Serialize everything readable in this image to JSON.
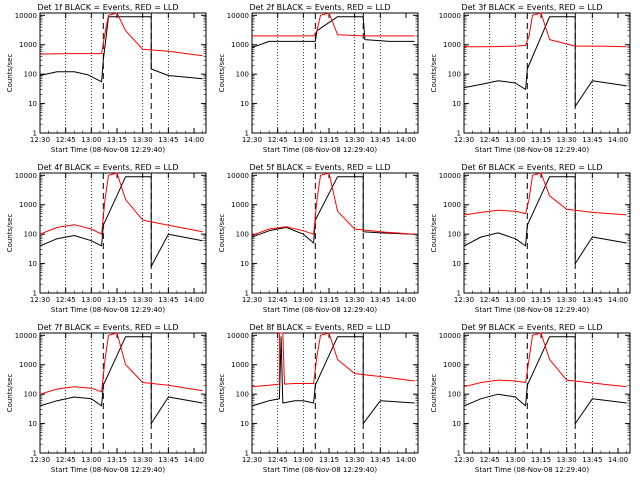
{
  "figure": {
    "xlabel": "Start Time (08-Nov-08 12:29:40)",
    "ylabel": "Counts/sec",
    "x_tick_labels": [
      "12:30",
      "12:45",
      "13:00",
      "13:15",
      "13:30",
      "13:45",
      "14:00"
    ],
    "y_tick_labels": [
      "1",
      "10",
      "100",
      "1000",
      "10000"
    ],
    "colors": {
      "events": "#000000",
      "lld": "#ff0000"
    }
  },
  "chart_data": [
    {
      "type": "line",
      "title": "Det 1f BLACK = Events, RED = LLD",
      "xlabel": "Start Time (08-Nov-08 12:29:40)",
      "ylabel": "Counts/sec",
      "xlim": [
        "12:30",
        "14:07"
      ],
      "ylim": [
        1,
        12000
      ],
      "y_scale": "log",
      "dotted_lines": [
        "12:45",
        "13:00",
        "13:30",
        "13:45"
      ],
      "dashed_lines": [
        "13:07",
        "13:35"
      ],
      "series": [
        {
          "name": "BLACK = Events",
          "color": "#000000",
          "x": [
            "12:30",
            "12:40",
            "12:50",
            "12:58",
            "13:06",
            "13:07",
            "13:10",
            "13:20",
            "13:35",
            "13:35",
            "13:45",
            "14:05"
          ],
          "y": [
            90,
            120,
            120,
            95,
            55,
            300,
            9000,
            9000,
            9000,
            150,
            90,
            70
          ]
        },
        {
          "name": "RED = LLD",
          "color": "#ff0000",
          "x": [
            "12:30",
            "12:45",
            "13:00",
            "13:06",
            "13:08",
            "13:10",
            "13:15",
            "13:20",
            "13:30",
            "13:45",
            "14:05"
          ],
          "y": [
            480,
            500,
            500,
            500,
            2500,
            10000,
            12000,
            3000,
            700,
            600,
            420
          ]
        }
      ]
    },
    {
      "type": "line",
      "title": "Det 2f BLACK = Events, RED = LLD",
      "xlabel": "Start Time (08-Nov-08 12:29:40)",
      "ylabel": "Counts/sec",
      "xlim": [
        "12:30",
        "14:07"
      ],
      "ylim": [
        1,
        12000
      ],
      "y_scale": "log",
      "dotted_lines": [
        "12:45",
        "13:00",
        "13:30",
        "13:45"
      ],
      "dashed_lines": [
        "13:07",
        "13:35"
      ],
      "series": [
        {
          "name": "BLACK = Events",
          "color": "#000000",
          "x": [
            "12:30",
            "12:40",
            "12:50",
            "13:00",
            "13:07",
            "13:08",
            "13:20",
            "13:35",
            "13:36",
            "13:50",
            "14:05"
          ],
          "y": [
            800,
            1300,
            1300,
            1300,
            1300,
            3000,
            9000,
            9000,
            1500,
            1300,
            1300
          ]
        },
        {
          "name": "RED = LLD",
          "color": "#ff0000",
          "x": [
            "12:30",
            "12:45",
            "13:00",
            "13:06",
            "13:08",
            "13:10",
            "13:15",
            "13:20",
            "13:35",
            "13:50",
            "14:05"
          ],
          "y": [
            2000,
            2000,
            2000,
            2000,
            3000,
            10000,
            12000,
            2200,
            2000,
            2000,
            2000
          ]
        }
      ]
    },
    {
      "type": "line",
      "title": "Det 3f BLACK = Events, RED = LLD",
      "xlabel": "Start Time (08-Nov-08 12:29:40)",
      "ylabel": "Counts/sec",
      "xlim": [
        "12:30",
        "14:07"
      ],
      "ylim": [
        1,
        12000
      ],
      "y_scale": "log",
      "dotted_lines": [
        "12:45",
        "13:00",
        "13:30",
        "13:45"
      ],
      "dashed_lines": [
        "13:07",
        "13:35"
      ],
      "series": [
        {
          "name": "BLACK = Events",
          "color": "#000000",
          "x": [
            "12:30",
            "12:40",
            "12:50",
            "13:00",
            "13:06",
            "13:07",
            "13:20",
            "13:35",
            "13:35",
            "13:45",
            "14:05"
          ],
          "y": [
            35,
            45,
            60,
            50,
            30,
            150,
            9000,
            9000,
            8,
            60,
            40
          ]
        },
        {
          "name": "RED = LLD",
          "color": "#ff0000",
          "x": [
            "12:30",
            "12:45",
            "13:00",
            "13:06",
            "13:08",
            "13:10",
            "13:15",
            "13:20",
            "13:35",
            "13:50",
            "14:05"
          ],
          "y": [
            850,
            850,
            900,
            950,
            2000,
            10000,
            12000,
            1500,
            900,
            900,
            850
          ]
        }
      ]
    },
    {
      "type": "line",
      "title": "Det 4f BLACK = Events, RED = LLD",
      "xlabel": "Start Time (08-Nov-08 12:29:40)",
      "ylabel": "Counts/sec",
      "xlim": [
        "12:30",
        "14:07"
      ],
      "ylim": [
        1,
        12000
      ],
      "y_scale": "log",
      "dotted_lines": [
        "12:45",
        "13:00",
        "13:30",
        "13:45"
      ],
      "dashed_lines": [
        "13:07",
        "13:35"
      ],
      "series": [
        {
          "name": "BLACK = Events",
          "color": "#000000",
          "x": [
            "12:30",
            "12:40",
            "12:50",
            "13:00",
            "13:06",
            "13:07",
            "13:20",
            "13:35",
            "13:35",
            "13:45",
            "14:05"
          ],
          "y": [
            40,
            70,
            90,
            60,
            40,
            200,
            9000,
            9000,
            8,
            100,
            60
          ]
        },
        {
          "name": "RED = LLD",
          "color": "#ff0000",
          "x": [
            "12:30",
            "12:40",
            "12:50",
            "13:00",
            "13:06",
            "13:08",
            "13:10",
            "13:15",
            "13:20",
            "13:30",
            "13:45",
            "14:05"
          ],
          "y": [
            100,
            170,
            210,
            150,
            100,
            1500,
            10000,
            12000,
            1500,
            300,
            200,
            120
          ]
        }
      ]
    },
    {
      "type": "line",
      "title": "Det 5f BLACK = Events, RED = LLD",
      "xlabel": "Start Time (08-Nov-08 12:29:40)",
      "ylabel": "Counts/sec",
      "xlim": [
        "12:30",
        "14:07"
      ],
      "ylim": [
        1,
        12000
      ],
      "y_scale": "log",
      "dotted_lines": [
        "12:45",
        "13:00",
        "13:30",
        "13:45"
      ],
      "dashed_lines": [
        "13:07",
        "13:35"
      ],
      "series": [
        {
          "name": "BLACK = Events",
          "color": "#000000",
          "x": [
            "12:30",
            "12:40",
            "12:50",
            "13:00",
            "13:06",
            "13:07",
            "13:20",
            "13:35",
            "13:35",
            "13:45",
            "14:05"
          ],
          "y": [
            80,
            130,
            170,
            100,
            50,
            300,
            9000,
            9000,
            120,
            110,
            100
          ]
        },
        {
          "name": "RED = LLD",
          "color": "#ff0000",
          "x": [
            "12:30",
            "12:40",
            "12:50",
            "13:00",
            "13:06",
            "13:08",
            "13:10",
            "13:15",
            "13:20",
            "13:30",
            "13:45",
            "14:05"
          ],
          "y": [
            90,
            150,
            180,
            130,
            100,
            1500,
            10000,
            12000,
            600,
            150,
            120,
            100
          ]
        }
      ]
    },
    {
      "type": "line",
      "title": "Det 6f BLACK = Events, RED = LLD",
      "xlabel": "Start Time (08-Nov-08 12:29:40)",
      "ylabel": "Counts/sec",
      "xlim": [
        "12:30",
        "14:07"
      ],
      "ylim": [
        1,
        12000
      ],
      "y_scale": "log",
      "dotted_lines": [
        "12:45",
        "13:00",
        "13:30",
        "13:45"
      ],
      "dashed_lines": [
        "13:07",
        "13:35"
      ],
      "series": [
        {
          "name": "BLACK = Events",
          "color": "#000000",
          "x": [
            "12:30",
            "12:40",
            "12:50",
            "13:00",
            "13:06",
            "13:07",
            "13:20",
            "13:35",
            "13:35",
            "13:45",
            "14:05"
          ],
          "y": [
            40,
            80,
            110,
            70,
            40,
            200,
            9000,
            9000,
            10,
            80,
            50
          ]
        },
        {
          "name": "RED = LLD",
          "color": "#ff0000",
          "x": [
            "12:30",
            "12:40",
            "12:50",
            "13:00",
            "13:06",
            "13:08",
            "13:10",
            "13:15",
            "13:20",
            "13:30",
            "13:45",
            "14:05"
          ],
          "y": [
            450,
            550,
            650,
            600,
            500,
            1500,
            10000,
            12000,
            2000,
            700,
            550,
            450
          ]
        }
      ]
    },
    {
      "type": "line",
      "title": "Det 7f BLACK = Events, RED = LLD",
      "xlabel": "Start Time (08-Nov-08 12:29:40)",
      "ylabel": "Counts/sec",
      "xlim": [
        "12:30",
        "14:07"
      ],
      "ylim": [
        1,
        12000
      ],
      "y_scale": "log",
      "dotted_lines": [
        "12:45",
        "13:00",
        "13:30",
        "13:45"
      ],
      "dashed_lines": [
        "13:07",
        "13:35"
      ],
      "series": [
        {
          "name": "BLACK = Events",
          "color": "#000000",
          "x": [
            "12:30",
            "12:40",
            "12:50",
            "13:00",
            "13:06",
            "13:07",
            "13:20",
            "13:35",
            "13:35",
            "13:45",
            "14:05"
          ],
          "y": [
            40,
            60,
            80,
            70,
            40,
            200,
            9000,
            9000,
            10,
            80,
            50
          ]
        },
        {
          "name": "RED = LLD",
          "color": "#ff0000",
          "x": [
            "12:30",
            "12:40",
            "12:50",
            "13:00",
            "13:06",
            "13:08",
            "13:10",
            "13:15",
            "13:20",
            "13:30",
            "13:45",
            "14:05"
          ],
          "y": [
            100,
            150,
            180,
            160,
            120,
            1500,
            10000,
            12000,
            1000,
            250,
            200,
            130
          ]
        }
      ]
    },
    {
      "type": "line",
      "title": "Det 8f BLACK = Events, RED = LLD",
      "xlabel": "Start Time (08-Nov-08 12:29:40)",
      "ylabel": "Counts/sec",
      "xlim": [
        "12:30",
        "14:07"
      ],
      "ylim": [
        1,
        12000
      ],
      "y_scale": "log",
      "dotted_lines": [
        "12:45",
        "13:00",
        "13:30",
        "13:45"
      ],
      "dashed_lines": [
        "13:07",
        "13:35"
      ],
      "series": [
        {
          "name": "BLACK = Events",
          "color": "#000000",
          "x": [
            "12:30",
            "12:40",
            "12:46",
            "12:47",
            "12:48",
            "12:55",
            "13:00",
            "13:06",
            "13:07",
            "13:20",
            "13:35",
            "13:35",
            "13:45",
            "14:05"
          ],
          "y": [
            40,
            60,
            70,
            9000,
            50,
            60,
            60,
            50,
            200,
            9000,
            9000,
            10,
            60,
            50
          ]
        },
        {
          "name": "RED = LLD",
          "color": "#ff0000",
          "x": [
            "12:30",
            "12:40",
            "12:46",
            "12:46",
            "12:47",
            "12:48",
            "12:49",
            "12:55",
            "13:00",
            "13:06",
            "13:08",
            "13:10",
            "13:15",
            "13:20",
            "13:30",
            "13:45",
            "14:05"
          ],
          "y": [
            180,
            200,
            220,
            12000,
            12000,
            12000,
            220,
            230,
            230,
            230,
            2000,
            10000,
            12000,
            1500,
            500,
            400,
            280
          ]
        }
      ]
    },
    {
      "type": "line",
      "title": "Det 9f BLACK = Events, RED = LLD",
      "xlabel": "Start Time (08-Nov-08 12:29:40)",
      "ylabel": "Counts/sec",
      "xlim": [
        "12:30",
        "14:07"
      ],
      "ylim": [
        1,
        12000
      ],
      "y_scale": "log",
      "dotted_lines": [
        "12:45",
        "13:00",
        "13:30",
        "13:45"
      ],
      "dashed_lines": [
        "13:07",
        "13:35"
      ],
      "series": [
        {
          "name": "BLACK = Events",
          "color": "#000000",
          "x": [
            "12:30",
            "12:40",
            "12:50",
            "13:00",
            "13:06",
            "13:07",
            "13:20",
            "13:35",
            "13:35",
            "13:45",
            "14:05"
          ],
          "y": [
            40,
            70,
            100,
            80,
            40,
            200,
            9000,
            9000,
            10,
            70,
            50
          ]
        },
        {
          "name": "RED = LLD",
          "color": "#ff0000",
          "x": [
            "12:30",
            "12:40",
            "12:50",
            "13:00",
            "13:06",
            "13:08",
            "13:10",
            "13:15",
            "13:20",
            "13:30",
            "13:45",
            "14:05"
          ],
          "y": [
            180,
            250,
            300,
            280,
            250,
            1500,
            10000,
            12000,
            1500,
            300,
            240,
            180
          ]
        }
      ]
    }
  ]
}
